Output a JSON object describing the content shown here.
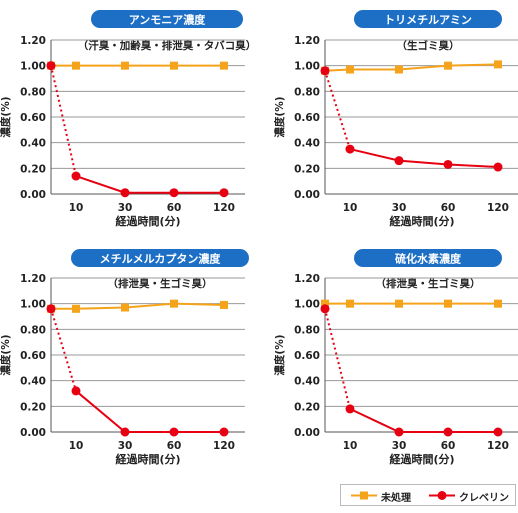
{
  "chart_data": [
    {
      "type": "line",
      "title": "アンモニア濃度",
      "subtitle": "（汗臭・加齢臭・排泄臭・タバコ臭）",
      "ylabel": "濃度(%)",
      "xlabel": "経過時間(分)",
      "ylim": [
        0,
        1.2
      ],
      "yticks": [
        "0.00",
        "0.20",
        "0.40",
        "0.60",
        "0.80",
        "1.00",
        "1.20"
      ],
      "xticks": [
        "10",
        "30",
        "60",
        "120"
      ],
      "grid": true,
      "series": [
        {
          "name": "未処理",
          "color": "#f5a31a",
          "x": [
            0,
            10,
            30,
            60,
            120
          ],
          "values": [
            1.0,
            1.0,
            1.0,
            1.0,
            1.0
          ]
        },
        {
          "name": "クレベリン",
          "color": "#e60012",
          "x": [
            0,
            10,
            30,
            60,
            120
          ],
          "values": [
            1.0,
            0.14,
            0.01,
            0.01,
            0.01
          ]
        }
      ]
    },
    {
      "type": "line",
      "title": "トリメチルアミン",
      "subtitle": "（生ゴミ臭）",
      "ylabel": "濃度(%)",
      "xlabel": "経過時間(分)",
      "ylim": [
        0,
        1.2
      ],
      "yticks": [
        "0.00",
        "0.20",
        "0.40",
        "0.60",
        "0.80",
        "1.00",
        "1.20"
      ],
      "xticks": [
        "10",
        "30",
        "60",
        "120"
      ],
      "grid": true,
      "series": [
        {
          "name": "未処理",
          "color": "#f5a31a",
          "x": [
            0,
            10,
            30,
            60,
            120
          ],
          "values": [
            0.96,
            0.97,
            0.97,
            1.0,
            1.01
          ]
        },
        {
          "name": "クレベリン",
          "color": "#e60012",
          "x": [
            0,
            10,
            30,
            60,
            120
          ],
          "values": [
            0.96,
            0.35,
            0.26,
            0.23,
            0.21
          ]
        }
      ]
    },
    {
      "type": "line",
      "title": "メチルメルカプタン濃度",
      "subtitle": "（排泄臭・生ゴミ臭）",
      "ylabel": "濃度(%)",
      "xlabel": "経過時間(分)",
      "ylim": [
        0,
        1.2
      ],
      "yticks": [
        "0.00",
        "0.20",
        "0.40",
        "0.60",
        "0.80",
        "1.00",
        "1.20"
      ],
      "xticks": [
        "10",
        "30",
        "60",
        "120"
      ],
      "grid": true,
      "series": [
        {
          "name": "未処理",
          "color": "#f5a31a",
          "x": [
            0,
            10,
            30,
            60,
            120
          ],
          "values": [
            0.96,
            0.96,
            0.97,
            1.0,
            0.99
          ]
        },
        {
          "name": "クレベリン",
          "color": "#e60012",
          "x": [
            0,
            10,
            30,
            60,
            120
          ],
          "values": [
            0.96,
            0.32,
            0.0,
            0.0,
            0.0
          ]
        }
      ]
    },
    {
      "type": "line",
      "title": "硫化水素濃度",
      "subtitle": "（排泄臭・生ゴミ臭）",
      "ylabel": "濃度(%)",
      "xlabel": "経過時間(分)",
      "ylim": [
        0,
        1.2
      ],
      "yticks": [
        "0.00",
        "0.20",
        "0.40",
        "0.60",
        "0.80",
        "1.00",
        "1.20"
      ],
      "xticks": [
        "10",
        "30",
        "60",
        "120"
      ],
      "grid": true,
      "series": [
        {
          "name": "未処理",
          "color": "#f5a31a",
          "x": [
            0,
            10,
            30,
            60,
            120
          ],
          "values": [
            1.0,
            1.0,
            1.0,
            1.0,
            1.0
          ]
        },
        {
          "name": "クレベリン",
          "color": "#e60012",
          "x": [
            0,
            10,
            30,
            60,
            120
          ],
          "values": [
            0.96,
            0.18,
            0.0,
            0.0,
            0.0
          ]
        }
      ]
    }
  ],
  "legend": {
    "untreated_label": "未処理",
    "cleverin_label": "クレベリン",
    "untreated_color": "#f5a31a",
    "cleverin_color": "#e60012"
  },
  "title_badge_color": "#1c6fc4"
}
